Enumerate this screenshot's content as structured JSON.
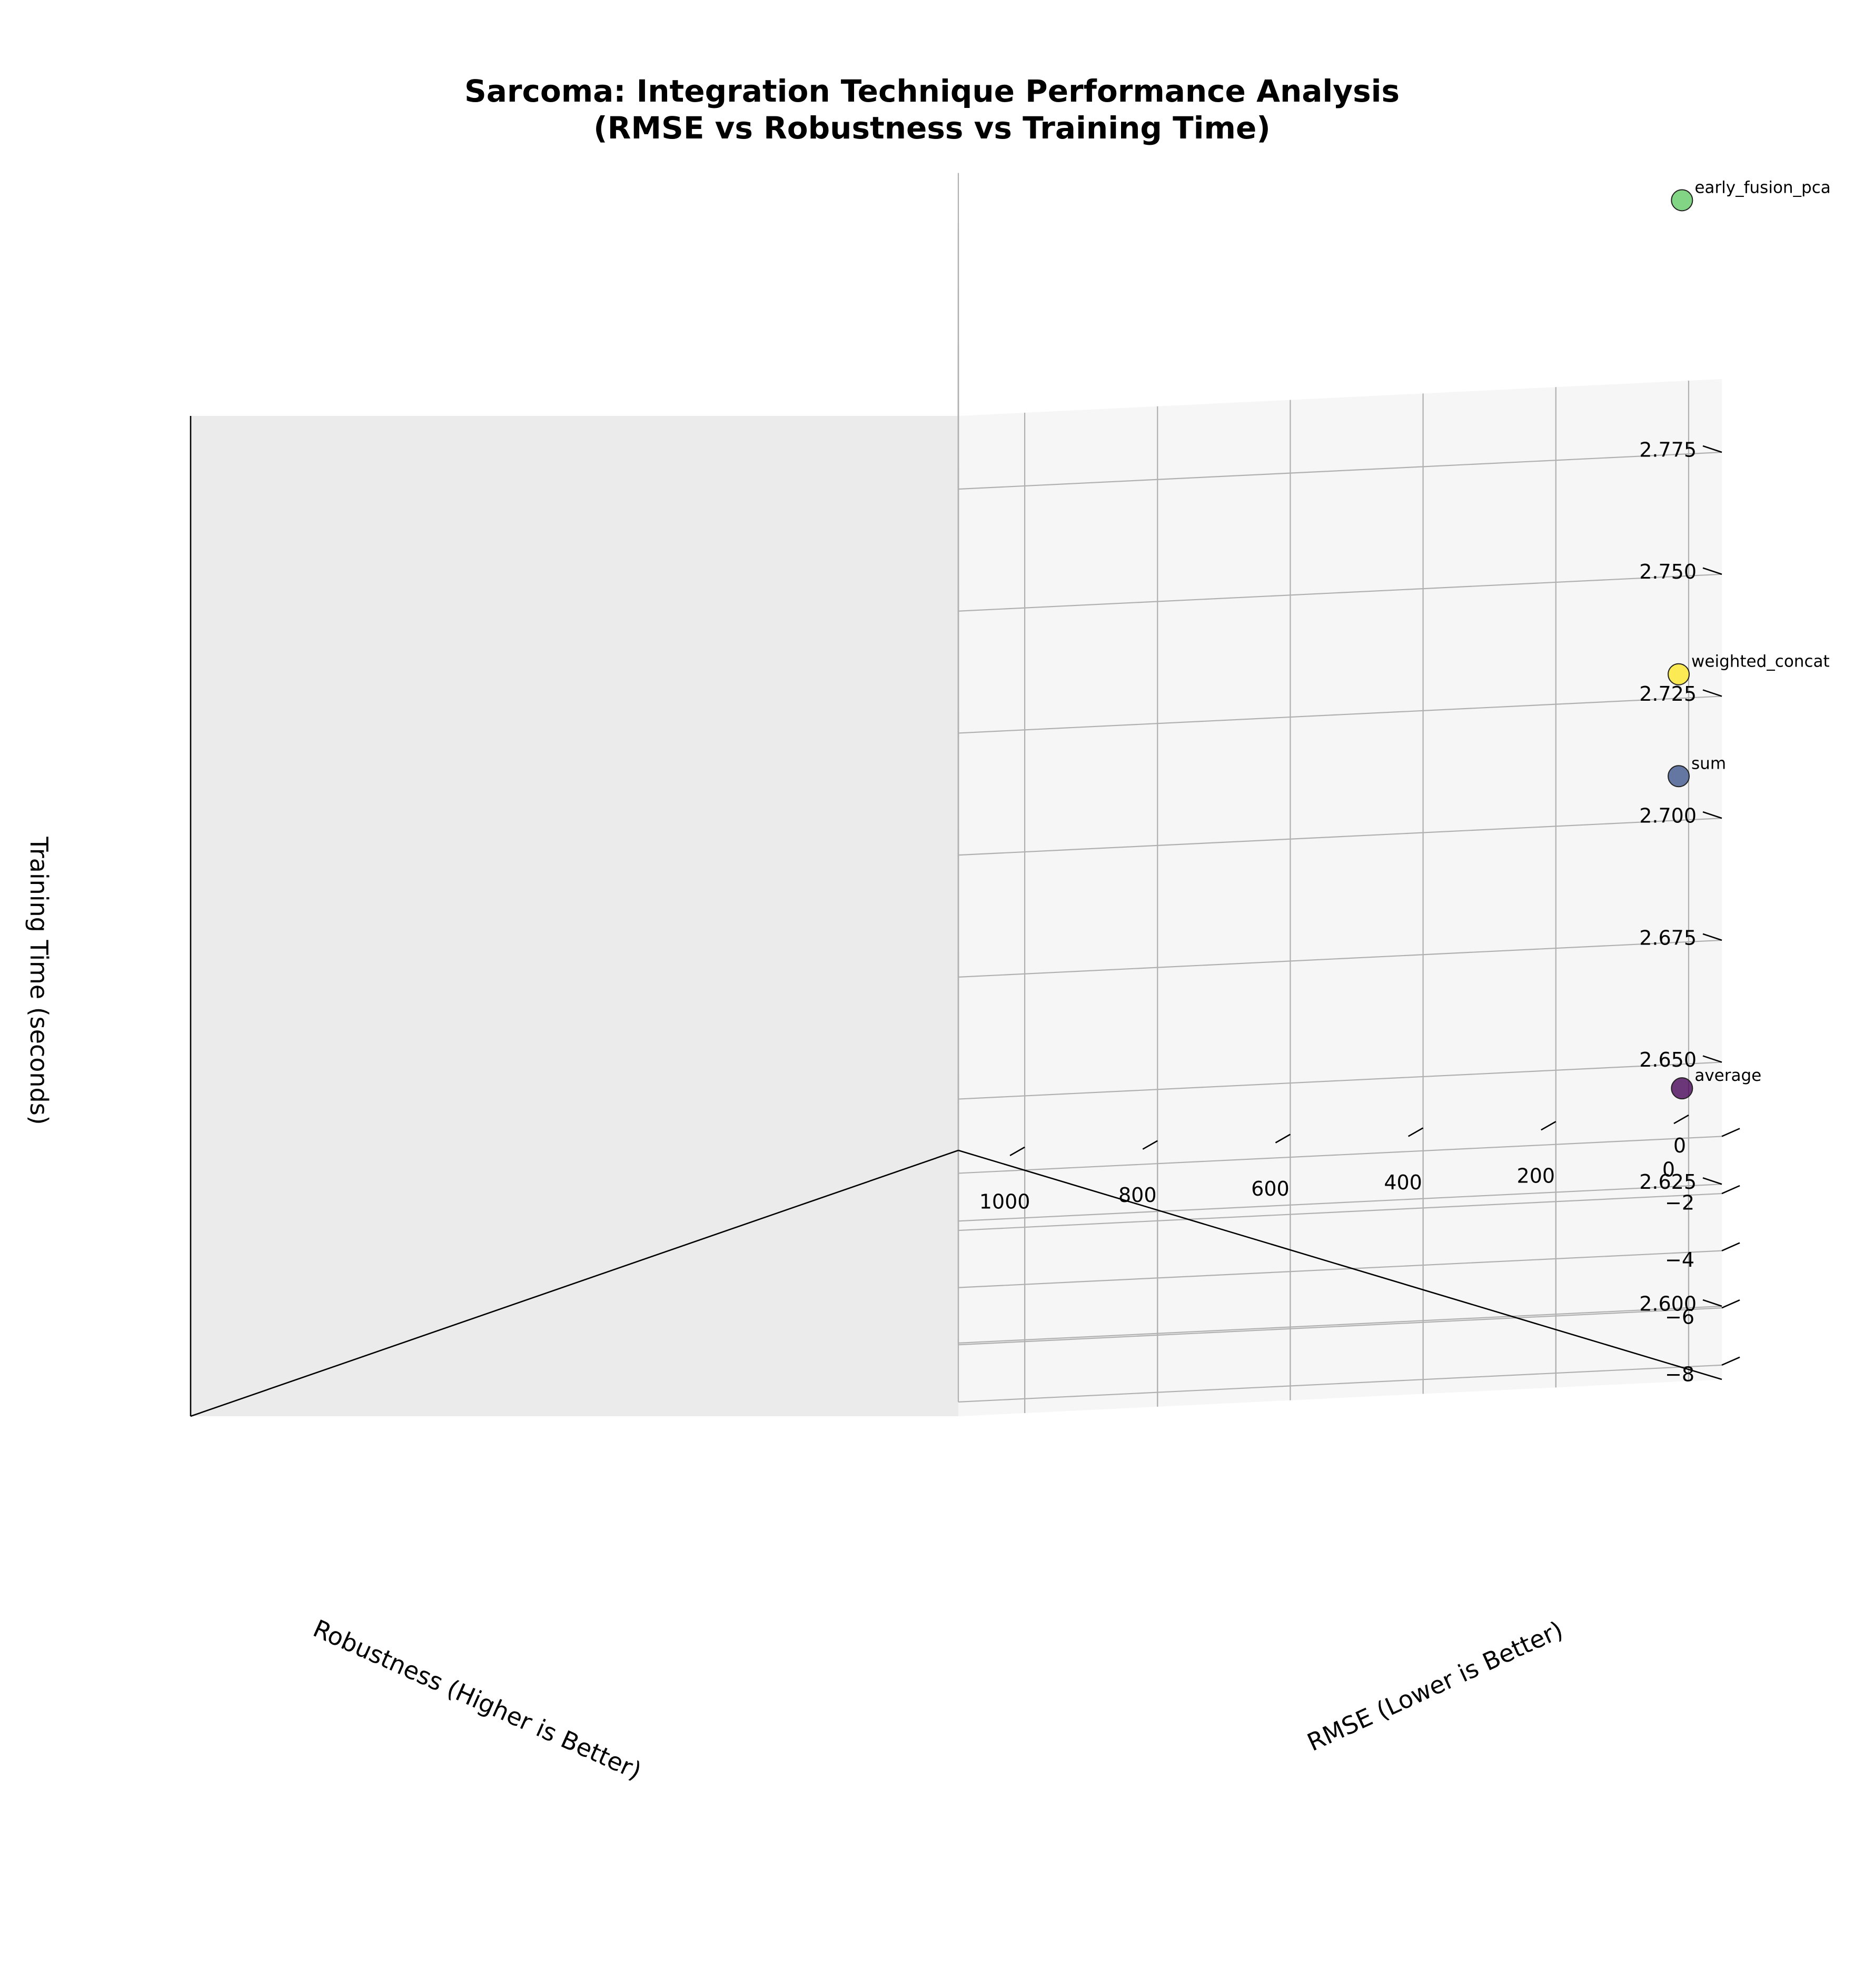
{
  "chart_data": {
    "type": "scatter",
    "projection": "3d",
    "title_lines": [
      "Sarcoma: Integration Technique Performance Analysis",
      "(RMSE vs Robustness vs Training Time)"
    ],
    "xlabel": "RMSE (Lower is Better)",
    "ylabel": "Robustness (Higher is Better)",
    "zlabel": "Training Time (seconds)",
    "x_ticks": [
      "0",
      "200",
      "400",
      "600",
      "800",
      "1000"
    ],
    "y_ticks": [
      "−8",
      "−6",
      "−4",
      "−2",
      "0"
    ],
    "z_ticks": [
      "2.600",
      "2.625",
      "2.650",
      "2.675",
      "2.700",
      "2.725",
      "2.750",
      "2.775"
    ],
    "xlim": [
      -50,
      1100
    ],
    "ylim": [
      -8.5,
      0.8
    ],
    "zlim": [
      2.585,
      2.79
    ],
    "grid": true,
    "colormap": "viridis",
    "points": [
      {
        "label": "early_fusion_pca",
        "rmse": 10,
        "robustness": -0.3,
        "training_time": 2.779,
        "color": "#5ec962"
      },
      {
        "label": "sum",
        "rmse": 15,
        "robustness": -0.3,
        "training_time": 2.661,
        "color": "#3b528b"
      },
      {
        "label": "average",
        "rmse": 10,
        "robustness": -0.3,
        "training_time": 2.597,
        "color": "#440154"
      },
      {
        "label": "weighted_concat",
        "rmse": 15,
        "robustness": -8.0,
        "training_time": 2.727,
        "color": "#fde725"
      }
    ]
  }
}
